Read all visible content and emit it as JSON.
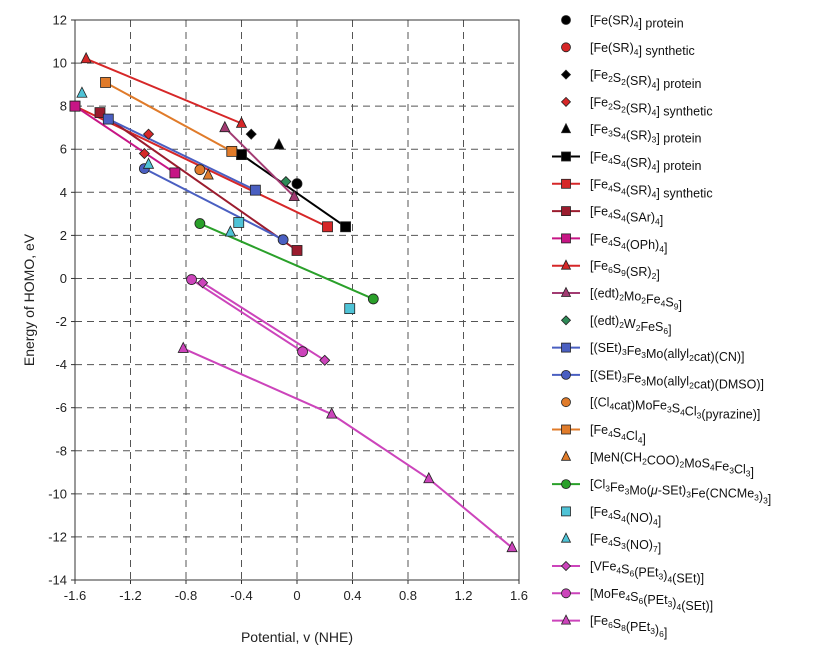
{
  "chart_data": {
    "type": "scatter",
    "xlabel": "Potential, v (NHE)",
    "ylabel": "Energy of HOMO, eV",
    "xlim": [
      -1.6,
      1.6
    ],
    "ylim": [
      -14,
      12
    ],
    "xticks": [
      "-1.6",
      "-1.2",
      "-0.8",
      "-0.4",
      "0",
      "0.4",
      "0.8",
      "1.2",
      "1.6"
    ],
    "yticks": [
      "12",
      "10",
      "8",
      "6",
      "4",
      "2",
      "0",
      "-2",
      "-4",
      "-6",
      "-8",
      "-10",
      "-12",
      "-14"
    ],
    "grid": true,
    "legend_position": "right",
    "series": [
      {
        "name": "[Fe(SR)4] protein",
        "label_parts": [
          [
            "[Fe(SR)",
            ""
          ],
          [
            "4",
            "sub"
          ],
          [
            "]  protein",
            ""
          ]
        ],
        "marker": "circle",
        "color": "#000000",
        "line": false,
        "points": [
          [
            0.0,
            4.4
          ]
        ]
      },
      {
        "name": "[Fe(SR)4] synthetic",
        "label_parts": [
          [
            "[Fe(SR)",
            ""
          ],
          [
            "4",
            "sub"
          ],
          [
            "]  synthetic",
            ""
          ]
        ],
        "marker": "circle",
        "color": "#d62728",
        "line": false,
        "points": []
      },
      {
        "name": "[Fe2S2(SR)4] protein",
        "label_parts": [
          [
            "[Fe",
            ""
          ],
          [
            "2",
            "sub"
          ],
          [
            "S",
            ""
          ],
          [
            "2",
            "sub"
          ],
          [
            "(SR)",
            ""
          ],
          [
            "4",
            "sub"
          ],
          [
            "]  protein",
            ""
          ]
        ],
        "marker": "diamond",
        "color": "#000000",
        "line": false,
        "points": [
          [
            -0.33,
            6.7
          ]
        ]
      },
      {
        "name": "[Fe2S2(SR)4] synthetic",
        "label_parts": [
          [
            "[Fe",
            ""
          ],
          [
            "2",
            "sub"
          ],
          [
            "S",
            ""
          ],
          [
            "2",
            "sub"
          ],
          [
            "(SR)",
            ""
          ],
          [
            "4",
            "sub"
          ],
          [
            "]  synthetic",
            ""
          ]
        ],
        "marker": "diamond",
        "color": "#d62728",
        "line": false,
        "points": [
          [
            -1.07,
            6.7
          ],
          [
            -1.1,
            5.8
          ]
        ]
      },
      {
        "name": "[Fe3S4(SR)3] protein",
        "label_parts": [
          [
            "[Fe",
            ""
          ],
          [
            "3",
            "sub"
          ],
          [
            "S",
            ""
          ],
          [
            "4",
            "sub"
          ],
          [
            "(SR)",
            ""
          ],
          [
            "3",
            "sub"
          ],
          [
            "]  protein",
            ""
          ]
        ],
        "marker": "triangle",
        "color": "#000000",
        "line": false,
        "points": [
          [
            -0.13,
            6.2
          ]
        ]
      },
      {
        "name": "[Fe4S4(SR)4] protein",
        "label_parts": [
          [
            "[Fe",
            ""
          ],
          [
            "4",
            "sub"
          ],
          [
            "S",
            ""
          ],
          [
            "4",
            "sub"
          ],
          [
            "(SR)",
            ""
          ],
          [
            "4",
            "sub"
          ],
          [
            "]  protein",
            ""
          ]
        ],
        "marker": "square",
        "color": "#000000",
        "line": true,
        "points": [
          [
            -0.4,
            5.75
          ],
          [
            0.35,
            2.4
          ]
        ]
      },
      {
        "name": "[Fe4S4(SR)4] synthetic",
        "label_parts": [
          [
            "[Fe",
            ""
          ],
          [
            "4",
            "sub"
          ],
          [
            "S",
            ""
          ],
          [
            "4",
            "sub"
          ],
          [
            "(SR)",
            ""
          ],
          [
            "4",
            "sub"
          ],
          [
            "]  synthetic",
            ""
          ]
        ],
        "marker": "square",
        "color": "#d62728",
        "line": true,
        "points": [
          [
            -1.6,
            8.0
          ],
          [
            0.22,
            2.4
          ]
        ]
      },
      {
        "name": "[Fe4S4(SAr)4]",
        "label_parts": [
          [
            "[Fe",
            ""
          ],
          [
            "4",
            "sub"
          ],
          [
            "S",
            ""
          ],
          [
            "4",
            "sub"
          ],
          [
            "(SAr)",
            ""
          ],
          [
            "4",
            "sub"
          ],
          [
            "]",
            ""
          ]
        ],
        "marker": "square",
        "color": "#9b1c2e",
        "line": true,
        "points": [
          [
            -1.42,
            7.7
          ],
          [
            0.0,
            1.3
          ]
        ]
      },
      {
        "name": "[Fe4S4(OPh)4]",
        "label_parts": [
          [
            "[Fe",
            ""
          ],
          [
            "4",
            "sub"
          ],
          [
            "S",
            ""
          ],
          [
            "4",
            "sub"
          ],
          [
            "(OPh)",
            ""
          ],
          [
            "4",
            "sub"
          ],
          [
            "]",
            ""
          ]
        ],
        "marker": "square",
        "color": "#c71585",
        "line": true,
        "points": [
          [
            -1.6,
            8.0
          ],
          [
            -0.88,
            4.9
          ]
        ]
      },
      {
        "name": "[Fe6S9(SR)2]",
        "label_parts": [
          [
            "[Fe",
            ""
          ],
          [
            "6",
            "sub"
          ],
          [
            "S",
            ""
          ],
          [
            "9",
            "sub"
          ],
          [
            "(SR)",
            ""
          ],
          [
            "2",
            "sub"
          ],
          [
            "]",
            ""
          ]
        ],
        "marker": "triangle",
        "color": "#d62728",
        "line": true,
        "points": [
          [
            -1.52,
            10.2
          ],
          [
            -0.4,
            7.2
          ]
        ]
      },
      {
        "name": "[(edt)2Mo2Fe4S9]",
        "label_parts": [
          [
            "[(edt)",
            ""
          ],
          [
            "2",
            "sub"
          ],
          [
            "Mo",
            ""
          ],
          [
            "2",
            "sub"
          ],
          [
            "Fe",
            ""
          ],
          [
            "4",
            "sub"
          ],
          [
            "S",
            ""
          ],
          [
            "9",
            "sub"
          ],
          [
            "]",
            ""
          ]
        ],
        "marker": "triangle",
        "color": "#a23b72",
        "line": true,
        "points": [
          [
            -0.52,
            7.0
          ],
          [
            -0.02,
            3.8
          ]
        ]
      },
      {
        "name": "[(edt)2W2FeS6]",
        "label_parts": [
          [
            "[(edt)",
            ""
          ],
          [
            "2",
            "sub"
          ],
          [
            "W",
            ""
          ],
          [
            "2",
            "sub"
          ],
          [
            "FeS",
            ""
          ],
          [
            "6",
            "sub"
          ],
          [
            "]",
            ""
          ]
        ],
        "marker": "diamond",
        "color": "#2e8b57",
        "line": false,
        "points": [
          [
            -0.08,
            4.5
          ]
        ]
      },
      {
        "name": "[(SEt)3Fe3Mo(allyl2cat)(CN)]",
        "label_parts": [
          [
            "[(SEt)",
            ""
          ],
          [
            "3",
            "sub"
          ],
          [
            "Fe",
            ""
          ],
          [
            "3",
            "sub"
          ],
          [
            "Mo(allyl",
            ""
          ],
          [
            "2",
            "sub"
          ],
          [
            "cat)(CN)]",
            ""
          ]
        ],
        "marker": "square",
        "color": "#4a5fc1",
        "line": true,
        "points": [
          [
            -1.36,
            7.4
          ],
          [
            -0.3,
            4.1
          ]
        ]
      },
      {
        "name": "[(SEt)3Fe3Mo(allyl2cat)(DMSO)]",
        "label_parts": [
          [
            "[(SEt)",
            ""
          ],
          [
            "3",
            "sub"
          ],
          [
            "Fe",
            ""
          ],
          [
            "3",
            "sub"
          ],
          [
            "Mo(allyl",
            ""
          ],
          [
            "2",
            "sub"
          ],
          [
            "cat)(DMSO)]",
            ""
          ]
        ],
        "marker": "circle",
        "color": "#4a5fc1",
        "line": true,
        "points": [
          [
            -1.1,
            5.1
          ],
          [
            -0.1,
            1.8
          ]
        ]
      },
      {
        "name": "[(Cl4cat)MoFe3S4Cl3(pyrazine)]",
        "label_parts": [
          [
            "[(Cl",
            ""
          ],
          [
            "4",
            "sub"
          ],
          [
            "cat)MoFe",
            ""
          ],
          [
            "3",
            "sub"
          ],
          [
            "S",
            ""
          ],
          [
            "4",
            "sub"
          ],
          [
            "Cl",
            ""
          ],
          [
            "3",
            "sub"
          ],
          [
            "(pyrazine)]",
            ""
          ]
        ],
        "marker": "circle",
        "color": "#e07b2a",
        "line": false,
        "points": [
          [
            -0.7,
            5.05
          ]
        ]
      },
      {
        "name": "[Fe4S4Cl4]",
        "label_parts": [
          [
            "[Fe",
            ""
          ],
          [
            "4",
            "sub"
          ],
          [
            "S",
            ""
          ],
          [
            "4",
            "sub"
          ],
          [
            "Cl",
            ""
          ],
          [
            "4",
            "sub"
          ],
          [
            "]",
            ""
          ]
        ],
        "marker": "square",
        "color": "#e07b2a",
        "line": true,
        "points": [
          [
            -1.38,
            9.1
          ],
          [
            -0.47,
            5.9
          ]
        ]
      },
      {
        "name": "[MeN(CH2COO)2MoS4Fe3Cl3]",
        "label_parts": [
          [
            "[MeN(CH",
            ""
          ],
          [
            "2",
            "sub"
          ],
          [
            "COO)",
            ""
          ],
          [
            "2",
            "sub"
          ],
          [
            "MoS",
            ""
          ],
          [
            "4",
            "sub"
          ],
          [
            "Fe",
            ""
          ],
          [
            "3",
            "sub"
          ],
          [
            "Cl",
            ""
          ],
          [
            "3",
            "sub"
          ],
          [
            "]",
            ""
          ]
        ],
        "marker": "triangle",
        "color": "#e07b2a",
        "line": false,
        "points": [
          [
            -0.64,
            4.8
          ]
        ]
      },
      {
        "name": "[Cl3Fe3Mo(μ-SEt)3Fe(CNCMe3)3]",
        "label_parts": [
          [
            "[Cl",
            ""
          ],
          [
            "3",
            "sub"
          ],
          [
            "Fe",
            ""
          ],
          [
            "3",
            "sub"
          ],
          [
            "Mo(",
            ""
          ],
          [
            "μ",
            "it"
          ],
          [
            "-SEt)",
            ""
          ],
          [
            "3",
            "sub"
          ],
          [
            "Fe(CNCMe",
            ""
          ],
          [
            "3",
            "sub"
          ],
          [
            ")",
            ""
          ],
          [
            "3",
            "sub"
          ],
          [
            "]",
            ""
          ]
        ],
        "marker": "circle",
        "color": "#2aa02a",
        "line": true,
        "points": [
          [
            -0.7,
            2.55
          ],
          [
            0.55,
            -0.95
          ]
        ]
      },
      {
        "name": "[Fe4S4(NO)4]",
        "label_parts": [
          [
            "[Fe",
            ""
          ],
          [
            "4",
            "sub"
          ],
          [
            "S",
            ""
          ],
          [
            "4",
            "sub"
          ],
          [
            "(NO)",
            ""
          ],
          [
            "4",
            "sub"
          ],
          [
            "]",
            ""
          ]
        ],
        "marker": "square",
        "color": "#4fc3d6",
        "line": false,
        "points": [
          [
            -0.42,
            2.6
          ],
          [
            0.38,
            -1.4
          ]
        ]
      },
      {
        "name": "[Fe4S3(NO)7]",
        "label_parts": [
          [
            "[Fe",
            ""
          ],
          [
            "4",
            "sub"
          ],
          [
            "S",
            ""
          ],
          [
            "3",
            "sub"
          ],
          [
            "(NO)",
            ""
          ],
          [
            "7",
            "sub"
          ],
          [
            "]",
            ""
          ]
        ],
        "marker": "triangle",
        "color": "#4fc3d6",
        "line": false,
        "points": [
          [
            -1.55,
            8.6
          ],
          [
            -1.07,
            5.3
          ],
          [
            -0.48,
            2.15
          ]
        ]
      },
      {
        "name": "[VFe4S6(PEt3)4(SEt)]",
        "label_parts": [
          [
            "[VFe",
            ""
          ],
          [
            "4",
            "sub"
          ],
          [
            "S",
            ""
          ],
          [
            "6",
            "sub"
          ],
          [
            "(PEt",
            ""
          ],
          [
            "3",
            "sub"
          ],
          [
            ")",
            ""
          ],
          [
            "4",
            "sub"
          ],
          [
            "(SEt)]",
            ""
          ]
        ],
        "marker": "diamond",
        "color": "#cc44bb",
        "line": true,
        "points": [
          [
            -0.68,
            -0.2
          ],
          [
            0.2,
            -3.8
          ]
        ]
      },
      {
        "name": "[MoFe4S6(PEt3)4(SEt)]",
        "label_parts": [
          [
            "[MoFe",
            ""
          ],
          [
            "4",
            "sub"
          ],
          [
            "S",
            ""
          ],
          [
            "6",
            "sub"
          ],
          [
            "(PEt",
            ""
          ],
          [
            "3",
            "sub"
          ],
          [
            ")",
            ""
          ],
          [
            "4",
            "sub"
          ],
          [
            "(SEt)]",
            ""
          ]
        ],
        "marker": "circle",
        "color": "#cc44bb",
        "line": true,
        "points": [
          [
            -0.76,
            -0.05
          ],
          [
            0.04,
            -3.4
          ]
        ]
      },
      {
        "name": "[Fe6S8(PEt3)6]",
        "label_parts": [
          [
            "[Fe",
            ""
          ],
          [
            "6",
            "sub"
          ],
          [
            "S",
            ""
          ],
          [
            "8",
            "sub"
          ],
          [
            "(PEt",
            ""
          ],
          [
            "3",
            "sub"
          ],
          [
            ")",
            ""
          ],
          [
            "6",
            "sub"
          ],
          [
            "]",
            ""
          ]
        ],
        "marker": "triangle",
        "color": "#cc44bb",
        "line": true,
        "points": [
          [
            -0.82,
            -3.25
          ],
          [
            0.25,
            -6.3
          ],
          [
            0.95,
            -9.3
          ],
          [
            1.55,
            -12.5
          ]
        ]
      }
    ]
  }
}
